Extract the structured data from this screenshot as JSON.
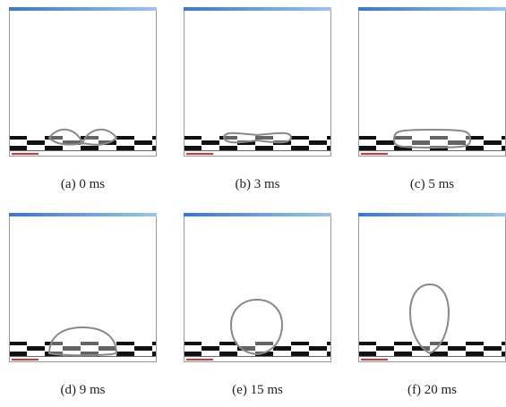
{
  "panels": [
    {
      "caption": "(a) 0 ms"
    },
    {
      "caption": "(b) 3 ms"
    },
    {
      "caption": "(c) 5 ms"
    },
    {
      "caption": "(d) 9 ms"
    },
    {
      "caption": "(e) 15 ms"
    },
    {
      "caption": "(f) 20 ms"
    }
  ]
}
